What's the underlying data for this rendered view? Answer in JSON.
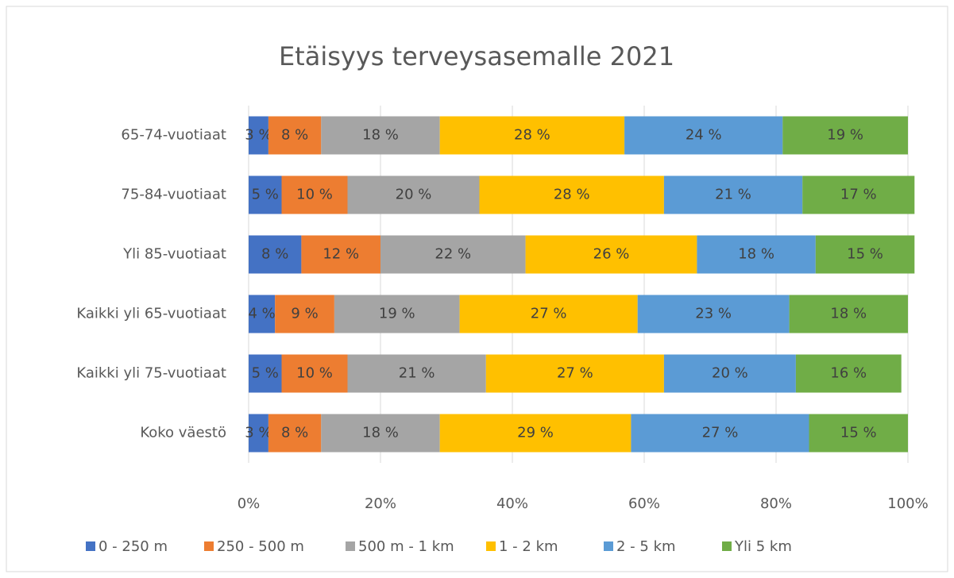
{
  "chart_data": {
    "type": "stacked-bar-horizontal",
    "title": "Etäisyys terveysasemalle 2021",
    "categories": [
      "65-74-vuotiaat",
      "75-84-vuotiaat",
      "Yli 85-vuotiaat",
      "Kaikki yli 65-vuotiaat",
      "Kaikki yli 75-vuotiaat",
      "Koko väestö"
    ],
    "series": [
      {
        "name": "0 - 250 m",
        "color": "#4472c4",
        "values": [
          3,
          5,
          8,
          4,
          5,
          3
        ],
        "value_labels": [
          "3 %",
          "5 %",
          "8 %",
          "4 %",
          "5 %",
          "3 %"
        ]
      },
      {
        "name": "250 - 500 m",
        "color": "#ed7d31",
        "values": [
          8,
          10,
          12,
          9,
          10,
          8
        ],
        "value_labels": [
          "8 %",
          "10 %",
          "12 %",
          "9 %",
          "10 %",
          "8 %"
        ]
      },
      {
        "name": "500 m - 1 km",
        "color": "#a5a5a5",
        "values": [
          18,
          20,
          22,
          19,
          21,
          18
        ],
        "value_labels": [
          "18 %",
          "20 %",
          "22 %",
          "19 %",
          "21 %",
          "18 %"
        ]
      },
      {
        "name": "1 - 2 km",
        "color": "#ffc000",
        "values": [
          28,
          28,
          26,
          27,
          27,
          29
        ],
        "value_labels": [
          "28 %",
          "28 %",
          "26 %",
          "27 %",
          "27 %",
          "29 %"
        ]
      },
      {
        "name": "2 - 5 km",
        "color": "#5b9bd5",
        "values": [
          24,
          21,
          18,
          23,
          20,
          27
        ],
        "value_labels": [
          "24 %",
          "21 %",
          "18 %",
          "23 %",
          "20 %",
          "27 %"
        ]
      },
      {
        "name": "Yli 5 km",
        "color": "#70ad47",
        "values": [
          19,
          17,
          15,
          18,
          16,
          15
        ],
        "value_labels": [
          "19 %",
          "17 %",
          "15 %",
          "18 %",
          "16 %",
          "15 %"
        ]
      }
    ],
    "xlim": [
      0,
      100
    ],
    "xticks": [
      {
        "value": 0,
        "label": "0%"
      },
      {
        "value": 20,
        "label": "20%"
      },
      {
        "value": 40,
        "label": "40%"
      },
      {
        "value": 60,
        "label": "60%"
      },
      {
        "value": 80,
        "label": "80%"
      },
      {
        "value": 100,
        "label": "100%"
      }
    ],
    "grid": true,
    "legend": "bottom"
  }
}
